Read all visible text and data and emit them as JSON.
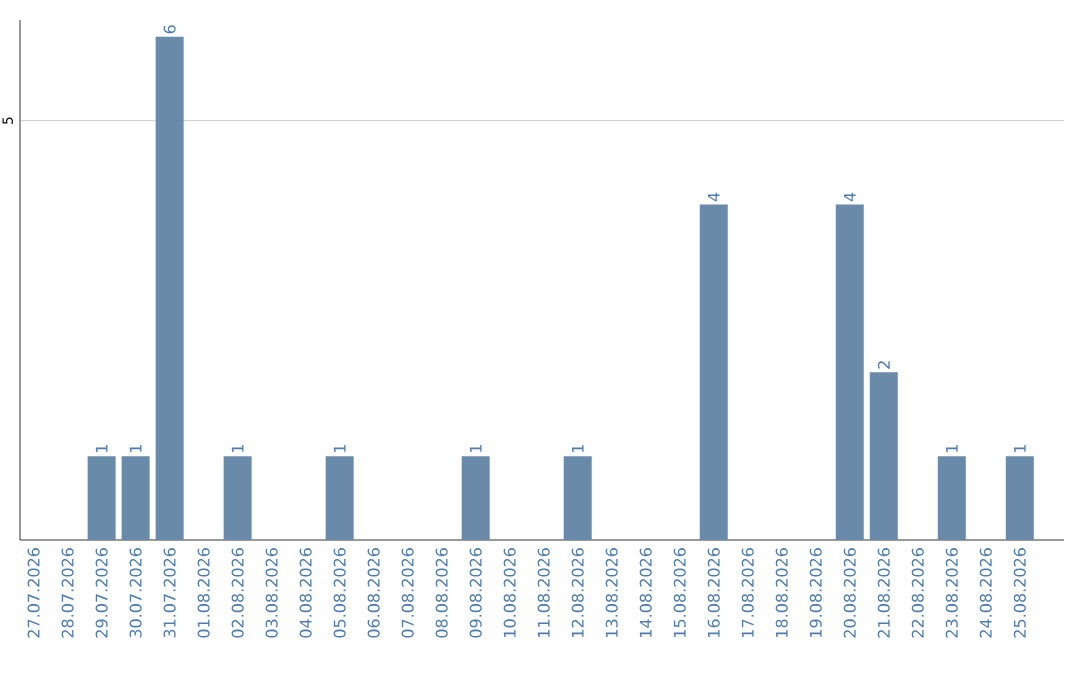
{
  "chart_data": {
    "type": "bar",
    "categories": [
      "27.07.2026",
      "28.07.2026",
      "29.07.2026",
      "30.07.2026",
      "31.07.2026",
      "01.08.2026",
      "02.08.2026",
      "03.08.2026",
      "04.08.2026",
      "05.08.2026",
      "06.08.2026",
      "07.08.2026",
      "08.08.2026",
      "09.08.2026",
      "10.08.2026",
      "11.08.2026",
      "12.08.2026",
      "13.08.2026",
      "14.08.2026",
      "15.08.2026",
      "16.08.2026",
      "17.08.2026",
      "18.08.2026",
      "19.08.2026",
      "20.08.2026",
      "21.08.2026",
      "22.08.2026",
      "23.08.2026",
      "24.08.2026",
      "25.08.2026"
    ],
    "values": [
      0,
      0,
      1,
      1,
      6,
      0,
      1,
      0,
      0,
      1,
      0,
      0,
      0,
      1,
      0,
      0,
      1,
      0,
      0,
      0,
      4,
      0,
      0,
      0,
      4,
      2,
      0,
      1,
      0,
      1
    ],
    "value_labels": [
      null,
      null,
      "1",
      "1",
      "6",
      null,
      "1",
      null,
      null,
      "1",
      null,
      null,
      null,
      "1",
      null,
      null,
      "1",
      null,
      null,
      null,
      "4",
      null,
      null,
      null,
      "4",
      "2",
      null,
      "1",
      null,
      "1"
    ],
    "color": "#6a8aaa",
    "ylim": [
      0,
      6.2
    ],
    "yticks": [
      5
    ],
    "grid": "y"
  }
}
